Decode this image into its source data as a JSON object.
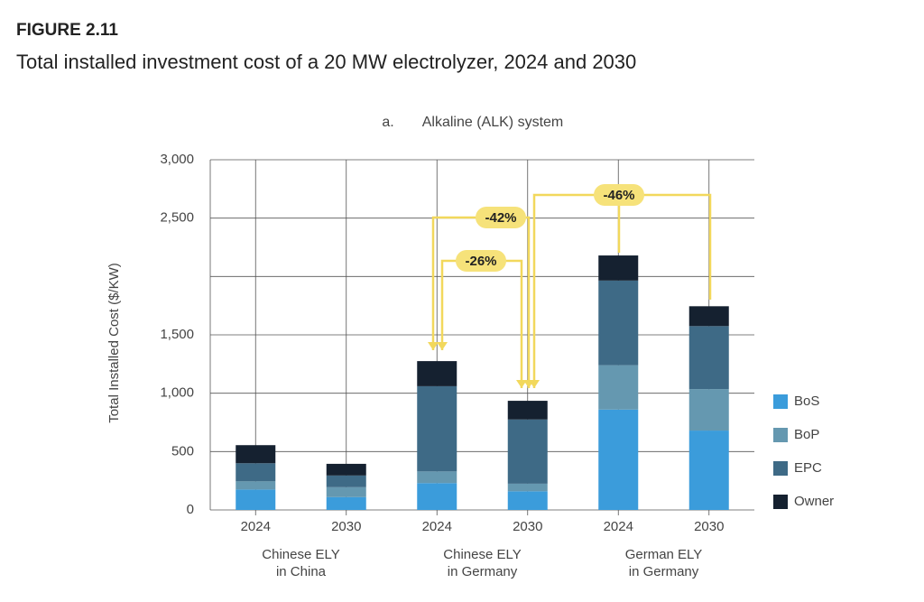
{
  "chart_data": {
    "type": "bar",
    "stacked": true,
    "figure_label": "FIGURE 2.11",
    "title": "Total installed investment cost of a 20 MW electrolyzer, 2024 and 2030",
    "panel_label": "a.",
    "subtitle": "Alkaline (ALK) system",
    "y_label": "Total Installed Cost ($/KW)",
    "categories": [
      "2024",
      "2030",
      "2024",
      "2030",
      "2024",
      "2030"
    ],
    "groups": [
      [
        "Chinese ELY",
        "in China"
      ],
      [
        "Chinese ELY",
        "in Germany"
      ],
      [
        "German ELY",
        "in Germany"
      ]
    ],
    "series": [
      {
        "name": "BoS",
        "color": "#3b9cdb",
        "values": [
          175,
          110,
          230,
          160,
          860,
          680
        ]
      },
      {
        "name": "BoP",
        "color": "#6598b0",
        "values": [
          70,
          85,
          100,
          65,
          380,
          355
        ]
      },
      {
        "name": "EPC",
        "color": "#3e6a86",
        "values": [
          155,
          100,
          730,
          550,
          725,
          540
        ]
      },
      {
        "name": "Owner",
        "color": "#152130",
        "values": [
          155,
          100,
          215,
          160,
          215,
          170
        ]
      }
    ],
    "ylim": [
      0,
      3000
    ],
    "yticks": [
      0,
      500,
      {
        "value": 1000,
        "label": "1,000"
      },
      {
        "value": 1500,
        "label": "1,500"
      },
      {
        "value": 2000,
        "label": null
      },
      {
        "value": 2500,
        "label": "2,500"
      },
      {
        "value": 3000,
        "label": "3,000"
      }
    ],
    "grid": true,
    "legend": "bottom-right",
    "annotations": [
      "-26%",
      "-42%",
      "-46%"
    ]
  }
}
